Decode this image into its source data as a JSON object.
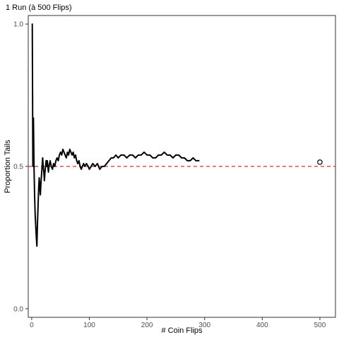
{
  "chart_data": {
    "type": "line",
    "title": "1 Run (à 500 Flips)",
    "xlabel": "# Coin Flips",
    "ylabel": "Proportion Tails",
    "xlim": [
      -6,
      527
    ],
    "ylim": [
      -0.03,
      1.03
    ],
    "x_ticks": [
      0,
      100,
      200,
      300,
      400,
      500
    ],
    "x_tick_labels": [
      "0",
      "100",
      "200",
      "300",
      "400",
      "500"
    ],
    "y_ticks": [
      0.0,
      0.5,
      1.0
    ],
    "y_tick_labels": [
      "0.0",
      "0.5",
      "1.0"
    ],
    "grid": false,
    "reference_line": {
      "y": 0.5,
      "style": "dashed",
      "color": "#cc3333"
    },
    "series": [
      {
        "points": [
          [
            1,
            1.0
          ],
          [
            2,
            0.5
          ],
          [
            3,
            0.67
          ],
          [
            4,
            0.5
          ],
          [
            5,
            0.4
          ],
          [
            6,
            0.33
          ],
          [
            7,
            0.29
          ],
          [
            8,
            0.25
          ],
          [
            9,
            0.22
          ],
          [
            10,
            0.3
          ],
          [
            11,
            0.36
          ],
          [
            12,
            0.42
          ],
          [
            13,
            0.46
          ],
          [
            14,
            0.43
          ],
          [
            15,
            0.4
          ],
          [
            16,
            0.44
          ],
          [
            17,
            0.47
          ],
          [
            18,
            0.5
          ],
          [
            19,
            0.53
          ],
          [
            20,
            0.5
          ],
          [
            21,
            0.48
          ],
          [
            22,
            0.45
          ],
          [
            23,
            0.48
          ],
          [
            24,
            0.5
          ],
          [
            25,
            0.52
          ],
          [
            26,
            0.5
          ],
          [
            27,
            0.52
          ],
          [
            28,
            0.5
          ],
          [
            29,
            0.48
          ],
          [
            30,
            0.5
          ],
          [
            32,
            0.52
          ],
          [
            34,
            0.5
          ],
          [
            36,
            0.49
          ],
          [
            38,
            0.51
          ],
          [
            40,
            0.5
          ],
          [
            42,
            0.52
          ],
          [
            44,
            0.53
          ],
          [
            46,
            0.52
          ],
          [
            48,
            0.54
          ],
          [
            50,
            0.55
          ],
          [
            52,
            0.54
          ],
          [
            54,
            0.56
          ],
          [
            56,
            0.55
          ],
          [
            58,
            0.54
          ],
          [
            60,
            0.53
          ],
          [
            62,
            0.55
          ],
          [
            64,
            0.54
          ],
          [
            66,
            0.56
          ],
          [
            68,
            0.55
          ],
          [
            70,
            0.54
          ],
          [
            72,
            0.55
          ],
          [
            74,
            0.53
          ],
          [
            76,
            0.54
          ],
          [
            78,
            0.52
          ],
          [
            80,
            0.51
          ],
          [
            82,
            0.52
          ],
          [
            84,
            0.5
          ],
          [
            86,
            0.49
          ],
          [
            88,
            0.5
          ],
          [
            90,
            0.51
          ],
          [
            92,
            0.5
          ],
          [
            95,
            0.51
          ],
          [
            98,
            0.5
          ],
          [
            100,
            0.49
          ],
          [
            103,
            0.5
          ],
          [
            106,
            0.51
          ],
          [
            110,
            0.5
          ],
          [
            114,
            0.51
          ],
          [
            118,
            0.49
          ],
          [
            122,
            0.5
          ],
          [
            126,
            0.5
          ],
          [
            130,
            0.51
          ],
          [
            134,
            0.52
          ],
          [
            138,
            0.53
          ],
          [
            142,
            0.53
          ],
          [
            146,
            0.54
          ],
          [
            150,
            0.53
          ],
          [
            155,
            0.54
          ],
          [
            160,
            0.54
          ],
          [
            165,
            0.53
          ],
          [
            170,
            0.54
          ],
          [
            175,
            0.54
          ],
          [
            180,
            0.53
          ],
          [
            185,
            0.54
          ],
          [
            190,
            0.54
          ],
          [
            195,
            0.55
          ],
          [
            200,
            0.54
          ],
          [
            205,
            0.54
          ],
          [
            210,
            0.53
          ],
          [
            215,
            0.53
          ],
          [
            220,
            0.54
          ],
          [
            225,
            0.54
          ],
          [
            230,
            0.55
          ],
          [
            235,
            0.54
          ],
          [
            240,
            0.54
          ],
          [
            245,
            0.53
          ],
          [
            250,
            0.54
          ],
          [
            255,
            0.54
          ],
          [
            260,
            0.53
          ],
          [
            265,
            0.53
          ],
          [
            270,
            0.52
          ],
          [
            275,
            0.52
          ],
          [
            280,
            0.53
          ],
          [
            285,
            0.52
          ],
          [
            290,
            0.52
          ]
        ]
      }
    ],
    "open_points": [
      [
        500,
        0.515
      ]
    ]
  }
}
